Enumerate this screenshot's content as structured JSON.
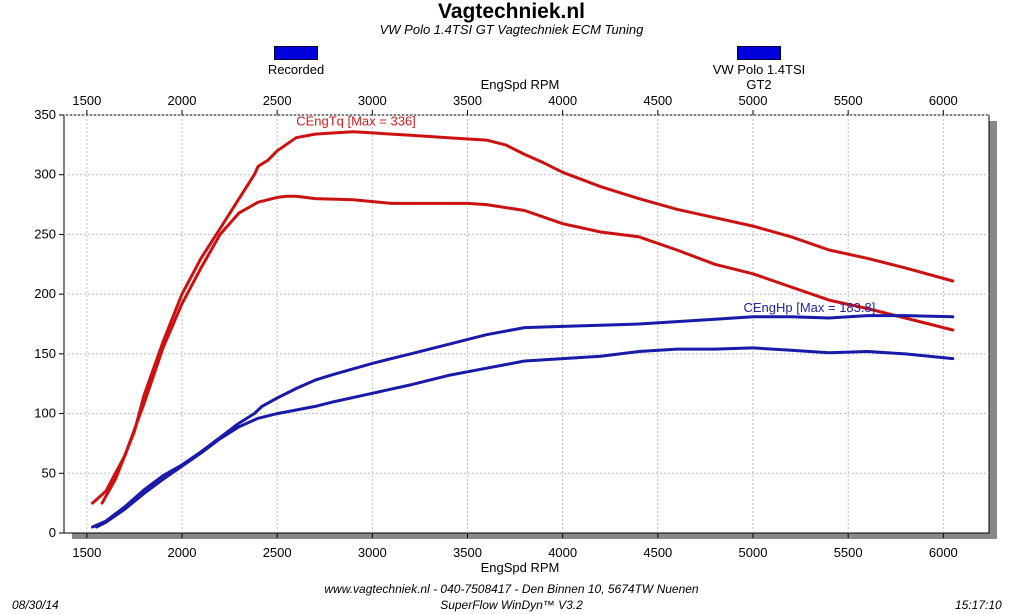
{
  "header": {
    "title": "Vagtechniek.nl",
    "subtitle": "VW Polo 1.4TSI GT Vagtechniek ECM Tuning"
  },
  "legend": [
    {
      "label": "Recorded",
      "color": "#0000dd"
    },
    {
      "label": "VW Polo 1.4TSI GT2",
      "color": "#0000dd"
    }
  ],
  "footer": {
    "date": "08/30/14",
    "address": "www.vagtechniek.nl - 040-7508417 - Den Binnen 10, 5674TW Nuenen",
    "software": "SuperFlow WinDyn™ V3.2",
    "time": "15:17:10"
  },
  "chart_data": {
    "type": "line",
    "xlabel": "EngSpd RPM",
    "ylabel": "",
    "xlim": [
      1380,
      6240
    ],
    "ylim": [
      0,
      350
    ],
    "x_ticks": [
      1500,
      2000,
      2500,
      3000,
      3500,
      4000,
      4500,
      5000,
      5500,
      6000
    ],
    "y_ticks": [
      0,
      50,
      100,
      150,
      200,
      250,
      300,
      350
    ],
    "grid": true,
    "annotations": [
      {
        "text": "CEngTq [Max = 336]",
        "x": 2600,
        "y": 341,
        "color": "#cc2222"
      },
      {
        "text": "CEngHp [Max = 183.8]",
        "x": 4950,
        "y": 185,
        "color": "#2222aa"
      }
    ],
    "series": [
      {
        "color": "#cc1111",
        "x": [
          1580,
          1650,
          1750,
          1800,
          1900,
          2000,
          2100,
          2200,
          2300,
          2380,
          2400,
          2450,
          2500,
          2600,
          2700,
          2800,
          2900,
          3000,
          3200,
          3400,
          3600,
          3700,
          3800,
          3900,
          4000,
          4200,
          4400,
          4600,
          4800,
          5000,
          5200,
          5400,
          5600,
          5800,
          6050
        ],
        "y": [
          25,
          45,
          85,
          115,
          160,
          200,
          230,
          255,
          280,
          300,
          307,
          312,
          320,
          331,
          334,
          335,
          336,
          335,
          333,
          331,
          329,
          325,
          317,
          310,
          302,
          290,
          280,
          271,
          264,
          257,
          248,
          237,
          230,
          222,
          211
        ]
      },
      {
        "color": "#cc1111",
        "x": [
          1530,
          1600,
          1700,
          1800,
          1900,
          2000,
          2100,
          2200,
          2300,
          2400,
          2500,
          2550,
          2600,
          2700,
          2900,
          3100,
          3300,
          3500,
          3600,
          3800,
          4000,
          4200,
          4400,
          4600,
          4800,
          5000,
          5200,
          5400,
          5600,
          5800,
          6050
        ],
        "y": [
          25,
          35,
          65,
          108,
          155,
          192,
          222,
          250,
          268,
          277,
          281,
          282,
          282,
          280,
          279,
          276,
          276,
          276,
          275,
          270,
          259,
          252,
          248,
          237,
          225,
          217,
          206,
          195,
          188,
          180,
          170
        ]
      },
      {
        "color": "#1a1aaa",
        "x": [
          1530,
          1600,
          1700,
          1800,
          1900,
          2000,
          2100,
          2200,
          2300,
          2380,
          2420,
          2500,
          2600,
          2700,
          2800,
          3000,
          3200,
          3400,
          3600,
          3800,
          4000,
          4200,
          4400,
          4600,
          4800,
          5000,
          5200,
          5400,
          5600,
          5800,
          6050
        ],
        "y": [
          5,
          10,
          22,
          36,
          48,
          57,
          68,
          80,
          92,
          100,
          106,
          113,
          121,
          128,
          133,
          142,
          150,
          158,
          166,
          172,
          173,
          174,
          175,
          177,
          179,
          181,
          181,
          180,
          182,
          182,
          181
        ]
      },
      {
        "color": "#1a1aaa",
        "x": [
          1550,
          1600,
          1700,
          1800,
          1900,
          2000,
          2100,
          2200,
          2300,
          2400,
          2500,
          2600,
          2700,
          2800,
          3000,
          3200,
          3400,
          3600,
          3800,
          4000,
          4200,
          4400,
          4600,
          4800,
          5000,
          5200,
          5400,
          5600,
          5800,
          6050
        ],
        "y": [
          5,
          9,
          20,
          33,
          45,
          56,
          67,
          79,
          89,
          96,
          100,
          103,
          106,
          110,
          117,
          124,
          132,
          138,
          144,
          146,
          148,
          152,
          154,
          154,
          155,
          153,
          151,
          152,
          150,
          146
        ]
      }
    ]
  }
}
